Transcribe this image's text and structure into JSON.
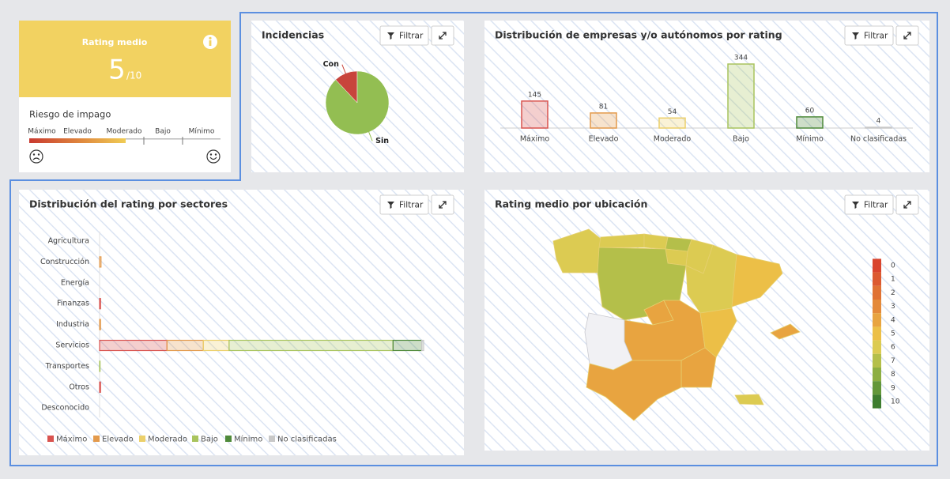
{
  "rating_card": {
    "title": "Rating medio",
    "value": 5,
    "scale": "/10",
    "risk_title": "Riesgo de impago",
    "risk_labels": [
      "Máximo",
      "Elevado",
      "Moderado",
      "Bajo",
      "Mínimo"
    ]
  },
  "filter_button": "Filtrar",
  "chart_data": [
    {
      "type": "pie",
      "title": "Incidencias",
      "categories": [
        "Con",
        "Sin"
      ],
      "values": [
        12,
        88
      ],
      "colors": [
        "#c8443c",
        "#93be52"
      ]
    },
    {
      "type": "bar",
      "title": "Distribución de empresas y/o autónomos por rating",
      "categories": [
        "Máximo",
        "Elevado",
        "Moderado",
        "Bajo",
        "Mínimo",
        "No clasificadas"
      ],
      "values": [
        145,
        81,
        54,
        344,
        60,
        4
      ],
      "colors": [
        "#d9534f",
        "#e39a4c",
        "#ecd06a",
        "#a9c45e",
        "#4f8a3a",
        "#c8c8c8"
      ]
    },
    {
      "type": "barh_stacked",
      "title": "Distribución del rating por sectores",
      "categories": [
        "Agricultura",
        "Construcción",
        "Energía",
        "Finanzas",
        "Industria",
        "Servicios",
        "Transportes",
        "Otros",
        "Desconocido"
      ],
      "series": [
        {
          "name": "Máximo",
          "color": "#d9534f",
          "values": [
            0,
            0,
            0,
            2,
            0,
            141,
            0,
            2,
            0
          ]
        },
        {
          "name": "Elevado",
          "color": "#e39a4c",
          "values": [
            0,
            3,
            0,
            0,
            2,
            76,
            0,
            0,
            0
          ]
        },
        {
          "name": "Moderado",
          "color": "#ecd06a",
          "values": [
            0,
            0,
            0,
            0,
            0,
            54,
            0,
            0,
            0
          ]
        },
        {
          "name": "Bajo",
          "color": "#a9c45e",
          "values": [
            0,
            0,
            0,
            0,
            0,
            343,
            1,
            0,
            0
          ]
        },
        {
          "name": "Mínimo",
          "color": "#4f8a3a",
          "values": [
            0,
            0,
            0,
            0,
            0,
            60,
            0,
            0,
            0
          ]
        },
        {
          "name": "No clasificadas",
          "color": "#c8c8c8",
          "values": [
            0,
            0,
            0,
            0,
            0,
            4,
            0,
            0,
            0
          ]
        }
      ]
    },
    {
      "type": "choropleth",
      "title": "Rating medio por ubicación",
      "values": [
        6,
        6,
        6,
        7,
        6,
        6,
        7,
        6,
        5,
        4,
        4,
        null,
        5,
        4,
        4,
        4,
        6
      ],
      "legend_ticks": [
        0,
        1,
        2,
        3,
        4,
        5,
        6,
        7,
        8,
        9,
        10
      ],
      "colorscale": [
        "#d9452e",
        "#dc5a30",
        "#e07234",
        "#e48a3a",
        "#e8a440",
        "#ecbf47",
        "#dccb52",
        "#b4bf4a",
        "#8cae42",
        "#63973a",
        "#3e7d30"
      ]
    }
  ]
}
